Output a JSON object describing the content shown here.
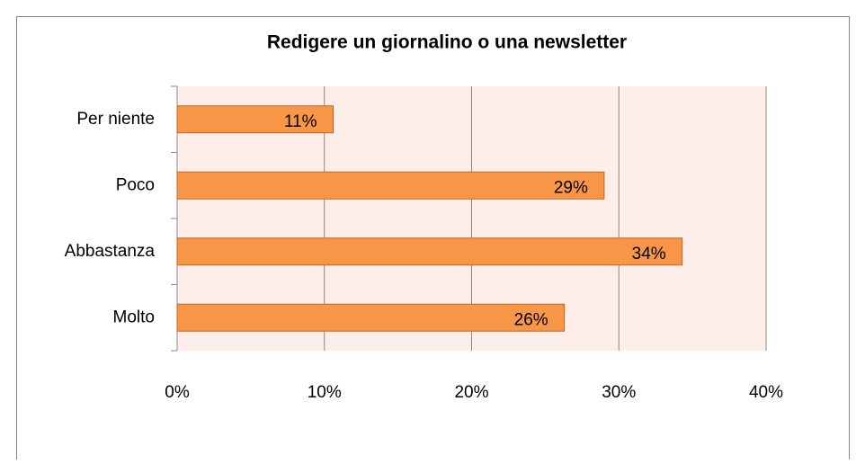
{
  "chart_data": {
    "type": "bar",
    "orientation": "horizontal",
    "title": "Redigere un giornalino o una newsletter",
    "categories": [
      "Per niente",
      "Poco",
      "Abbastanza",
      "Molto"
    ],
    "values": [
      10.6,
      29.0,
      34.3,
      26.3
    ],
    "value_labels": [
      "11%",
      "29%",
      "34%",
      "26%"
    ],
    "color": "#f79646",
    "xlim": [
      0,
      40
    ],
    "xticks": [
      {
        "value": 0,
        "label": "0%"
      },
      {
        "value": 10,
        "label": "10%"
      },
      {
        "value": 20,
        "label": "20%"
      },
      {
        "value": 30,
        "label": "30%"
      },
      {
        "value": 40,
        "label": "40%"
      }
    ],
    "grid": true
  }
}
